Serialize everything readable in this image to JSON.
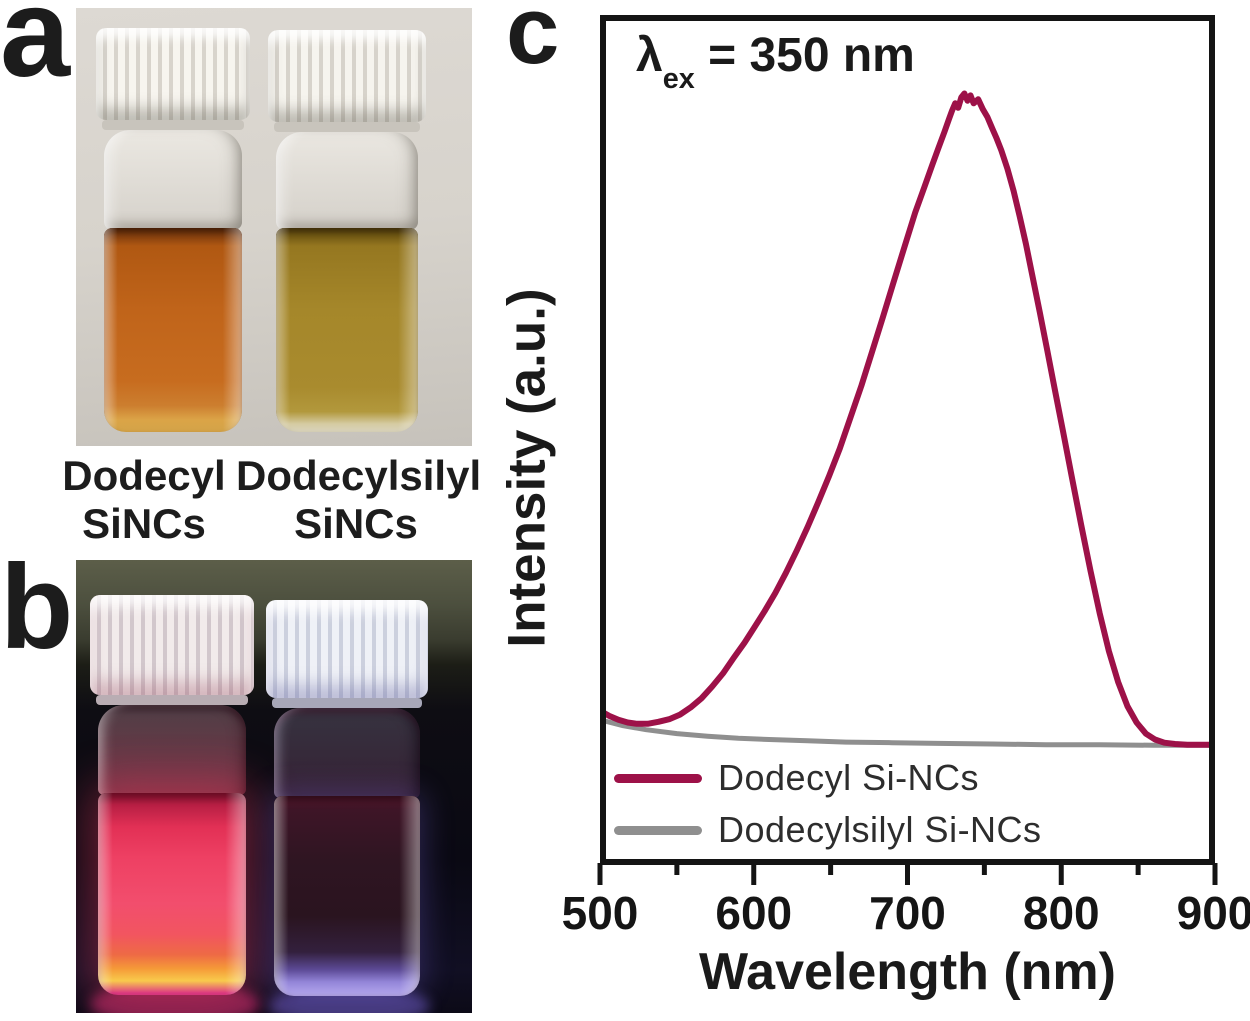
{
  "panel_a": {
    "label": "a",
    "captions": [
      {
        "line1": "Dodecyl",
        "line2": "SiNCs"
      },
      {
        "line1": "Dodecylsilyl",
        "line2": "SiNCs"
      }
    ],
    "photo": {
      "description": "Two capped glass vials under ambient light",
      "left_liquid_color": "#c0641a",
      "right_liquid_color": "#a5872a",
      "cap_color": "#efede7",
      "background_color": "#d7d3cc"
    }
  },
  "panel_b": {
    "label": "b",
    "photo": {
      "description": "Same two vials under UV illumination",
      "left_glow_color": "#ee4063",
      "left_base_glow_color": "#f8ca4c",
      "right_liquid_color": "#2f1522",
      "right_base_glow_color": "#9385d8",
      "background_color": "#0d0b16"
    }
  },
  "panel_c": {
    "label": "c",
    "annotation": {
      "symbol": "λ",
      "sub": "ex",
      "rest": " = 350 nm"
    }
  },
  "chart_data": {
    "type": "line",
    "title": "",
    "annotation": "λex = 350 nm",
    "xlabel": "Wavelength (nm)",
    "ylabel": "Intensity (a.u.)",
    "xlim": [
      500,
      900
    ],
    "ylim": [
      -0.18,
      1.12
    ],
    "x_major_ticks": [
      500,
      600,
      700,
      800,
      900
    ],
    "x_minor_ticks": [
      550,
      650,
      750,
      850
    ],
    "grid": false,
    "legend_position": "lower-left",
    "frame_color": "#141414",
    "series": [
      {
        "name": "Dodecyl Si-NCs",
        "color": "#9d1148",
        "width": 6,
        "points": [
          [
            500,
            0.056
          ],
          [
            506,
            0.048
          ],
          [
            512,
            0.042
          ],
          [
            518,
            0.038
          ],
          [
            524,
            0.036
          ],
          [
            531,
            0.036
          ],
          [
            538,
            0.039
          ],
          [
            545,
            0.043
          ],
          [
            552,
            0.05
          ],
          [
            559,
            0.061
          ],
          [
            566,
            0.075
          ],
          [
            573,
            0.093
          ],
          [
            580,
            0.113
          ],
          [
            587,
            0.137
          ],
          [
            594,
            0.16
          ],
          [
            600,
            0.182
          ],
          [
            607,
            0.208
          ],
          [
            614,
            0.236
          ],
          [
            621,
            0.267
          ],
          [
            628,
            0.301
          ],
          [
            635,
            0.337
          ],
          [
            642,
            0.375
          ],
          [
            649,
            0.415
          ],
          [
            656,
            0.457
          ],
          [
            663,
            0.505
          ],
          [
            670,
            0.553
          ],
          [
            677,
            0.605
          ],
          [
            684,
            0.658
          ],
          [
            691,
            0.712
          ],
          [
            698,
            0.765
          ],
          [
            705,
            0.818
          ],
          [
            711,
            0.857
          ],
          [
            716,
            0.89
          ],
          [
            720,
            0.916
          ],
          [
            724,
            0.941
          ],
          [
            727,
            0.961
          ],
          [
            729,
            0.974
          ],
          [
            731,
            0.985
          ],
          [
            733,
            0.978
          ],
          [
            735,
            0.994
          ],
          [
            737,
            1.0
          ],
          [
            739,
            0.989
          ],
          [
            741,
            0.997
          ],
          [
            743,
            0.985
          ],
          [
            746,
            0.991
          ],
          [
            749,
            0.976
          ],
          [
            752,
            0.964
          ],
          [
            755,
            0.947
          ],
          [
            758,
            0.931
          ],
          [
            761,
            0.913
          ],
          [
            765,
            0.885
          ],
          [
            769,
            0.851
          ],
          [
            773,
            0.812
          ],
          [
            777,
            0.77
          ],
          [
            781,
            0.724
          ],
          [
            786,
            0.666
          ],
          [
            791,
            0.606
          ],
          [
            796,
            0.545
          ],
          [
            801,
            0.485
          ],
          [
            807,
            0.412
          ],
          [
            813,
            0.34
          ],
          [
            819,
            0.27
          ],
          [
            825,
            0.205
          ],
          [
            831,
            0.147
          ],
          [
            837,
            0.1
          ],
          [
            843,
            0.063
          ],
          [
            849,
            0.038
          ],
          [
            855,
            0.021
          ],
          [
            861,
            0.012
          ],
          [
            867,
            0.007
          ],
          [
            874,
            0.005
          ],
          [
            882,
            0.004
          ],
          [
            891,
            0.004
          ],
          [
            900,
            0.004
          ]
        ]
      },
      {
        "name": "Dodecylsilyl Si-NCs",
        "color": "#8f8f8f",
        "width": 5,
        "points": [
          [
            500,
            0.042
          ],
          [
            515,
            0.033
          ],
          [
            530,
            0.027
          ],
          [
            550,
            0.021
          ],
          [
            570,
            0.017
          ],
          [
            590,
            0.014
          ],
          [
            610,
            0.012
          ],
          [
            635,
            0.01
          ],
          [
            660,
            0.008
          ],
          [
            690,
            0.007
          ],
          [
            720,
            0.006
          ],
          [
            755,
            0.005
          ],
          [
            790,
            0.004
          ],
          [
            825,
            0.004
          ],
          [
            860,
            0.003
          ],
          [
            900,
            0.003
          ]
        ]
      }
    ]
  }
}
